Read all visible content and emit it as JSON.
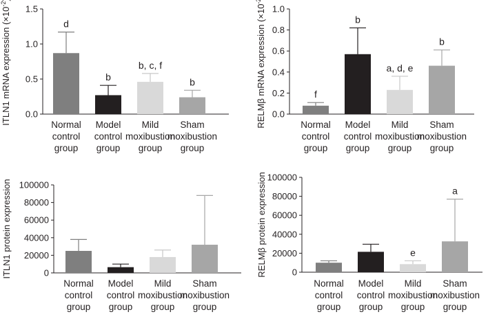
{
  "chart_data": [
    {
      "type": "bar",
      "panel": "top-left",
      "ylabel": "ITLN1 mRNA expression",
      "ylabel_multiplier": "(×10",
      "ylabel_exp": "-2",
      "ylabel_close": ")",
      "ylim": [
        0,
        1.5
      ],
      "yticks": [
        "0.0",
        "0.5",
        "1.0",
        "1.5"
      ],
      "ytick_values": [
        0,
        0.5,
        1.0,
        1.5
      ],
      "categories": [
        [
          "Normal",
          "control",
          "group"
        ],
        [
          "Model",
          "control",
          "group"
        ],
        [
          "Mild",
          "moxibustion",
          "group"
        ],
        [
          "Sham",
          "moxibustion",
          "group"
        ]
      ],
      "values": [
        0.87,
        0.27,
        0.46,
        0.24
      ],
      "errors": [
        0.3,
        0.14,
        0.12,
        0.1
      ],
      "annotations": [
        "d",
        "b",
        "b, c, f",
        "b"
      ],
      "colors": [
        "#7f7f7f",
        "#231f20",
        "#d9d9d9",
        "#a6a6a6"
      ]
    },
    {
      "type": "bar",
      "panel": "top-right",
      "ylabel": "RELMβ mRNA expression",
      "ylabel_multiplier": "(×10",
      "ylabel_exp": "-2",
      "ylabel_close": ")",
      "ylim": [
        0,
        1.0
      ],
      "yticks": [
        "0.0",
        "0.2",
        "0.4",
        "0.6",
        "0.8",
        "1.0"
      ],
      "ytick_values": [
        0,
        0.2,
        0.4,
        0.6,
        0.8,
        1.0
      ],
      "categories": [
        [
          "Normal",
          "control",
          "group"
        ],
        [
          "Model",
          "control",
          "group"
        ],
        [
          "Mild",
          "moxibustion",
          "group"
        ],
        [
          "Sham",
          "moxibustion",
          "group"
        ]
      ],
      "values": [
        0.08,
        0.57,
        0.23,
        0.46
      ],
      "errors": [
        0.03,
        0.25,
        0.13,
        0.15
      ],
      "annotations": [
        "f",
        "b",
        "a, d, e",
        "b"
      ],
      "colors": [
        "#7f7f7f",
        "#231f20",
        "#d9d9d9",
        "#a6a6a6"
      ]
    },
    {
      "type": "bar",
      "panel": "bottom-left",
      "ylabel": "ITLN1 protein expression",
      "ylim": [
        0,
        100000
      ],
      "yticks": [
        "0",
        "20000",
        "40000",
        "60000",
        "80000",
        "100000"
      ],
      "ytick_values": [
        0,
        20000,
        40000,
        60000,
        80000,
        100000
      ],
      "categories": [
        [
          "Normal",
          "control",
          "group"
        ],
        [
          "Model",
          "control",
          "group"
        ],
        [
          "Mild",
          "moxibustion",
          "group"
        ],
        [
          "Sham",
          "moxibustion",
          "group"
        ]
      ],
      "values": [
        25000,
        6500,
        18000,
        32000
      ],
      "errors": [
        13000,
        3500,
        8000,
        56000
      ],
      "annotations": [
        "",
        "",
        "",
        ""
      ],
      "colors": [
        "#7f7f7f",
        "#231f20",
        "#d9d9d9",
        "#a6a6a6"
      ]
    },
    {
      "type": "bar",
      "panel": "bottom-right",
      "ylabel": "RELMβ protein expression",
      "ylim": [
        0,
        100000
      ],
      "yticks": [
        "0",
        "20000",
        "40000",
        "60000",
        "80000",
        "100000"
      ],
      "ytick_values": [
        0,
        20000,
        40000,
        60000,
        80000,
        100000
      ],
      "categories": [
        [
          "Normal",
          "control",
          "group"
        ],
        [
          "Model",
          "control",
          "group"
        ],
        [
          "Mild",
          "moxibustion",
          "group"
        ],
        [
          "Sham",
          "moxibustion",
          "group"
        ]
      ],
      "values": [
        10000,
        21500,
        8500,
        32500
      ],
      "errors": [
        2000,
        8000,
        3500,
        44500
      ],
      "annotations": [
        "",
        "",
        "e",
        "a"
      ],
      "colors": [
        "#7f7f7f",
        "#231f20",
        "#d9d9d9",
        "#a6a6a6"
      ]
    }
  ]
}
